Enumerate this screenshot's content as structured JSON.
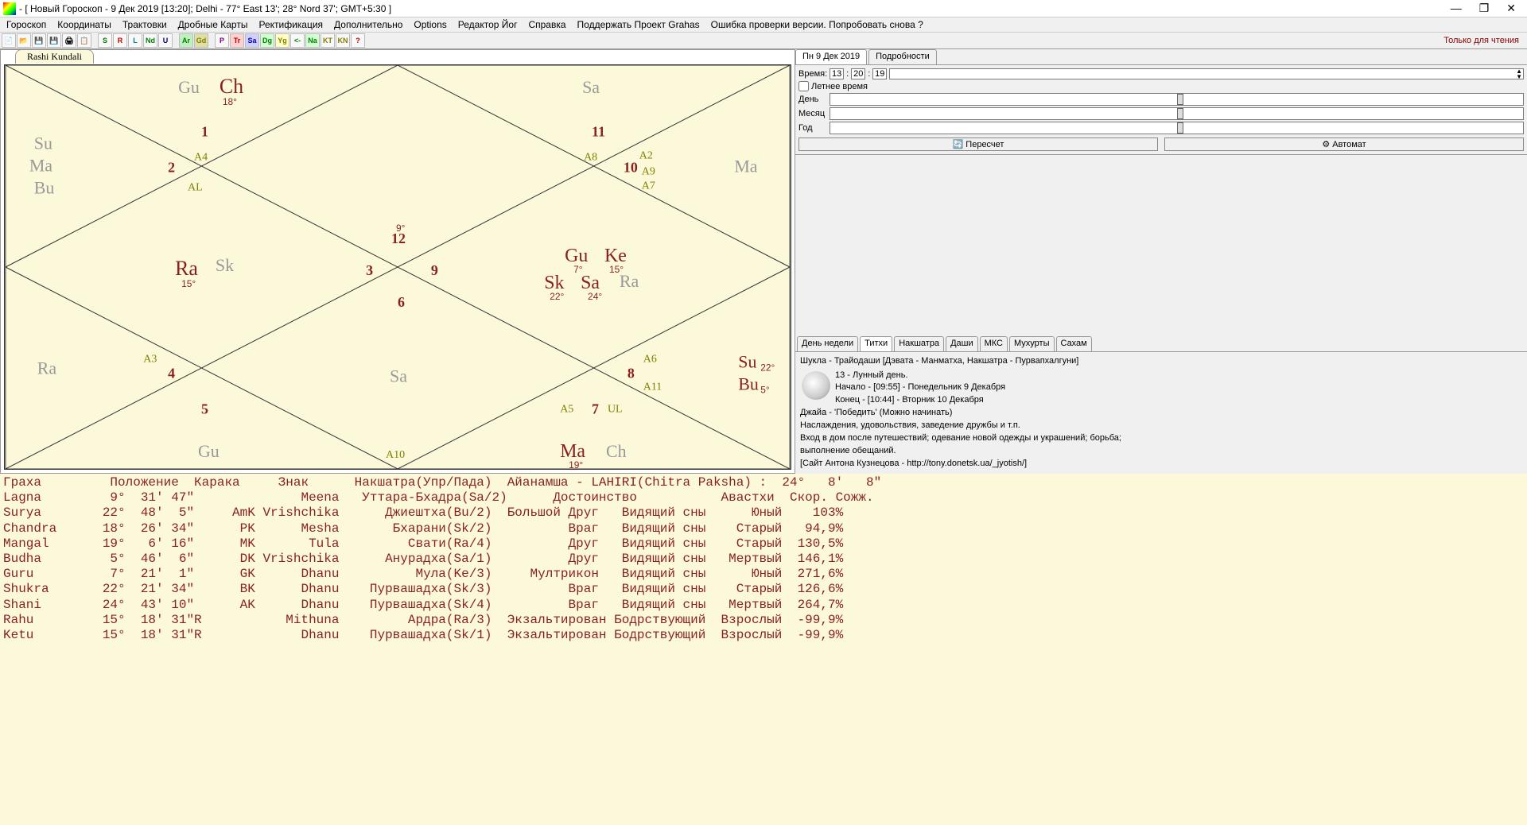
{
  "window": {
    "title": "- [ Новый Гороскоп -   9 Дек 2019 [13:20]; Delhi - 77° East 13'; 28° Nord 37'; GMT+5:30 ]"
  },
  "menu": [
    "Гороскоп",
    "Координаты",
    "Трактовки",
    "Дробные Карты",
    "Ректификация",
    "Дополнительно",
    "Options",
    "Редактор Йог",
    "Справка",
    "Поддержать Проект Grahas",
    "Ошибка проверки версии. Попробовать снова ?"
  ],
  "toolbar_readonly": "Только для чтения",
  "toolbar_btns": [
    {
      "t": "📄",
      "c": "#000"
    },
    {
      "t": "📂",
      "c": "#000"
    },
    {
      "t": "💾",
      "c": "#000"
    },
    {
      "t": "💾",
      "c": "#00a"
    },
    {
      "t": "🖨",
      "c": "#000"
    },
    {
      "t": "📋",
      "c": "#000"
    },
    {
      "t": "S",
      "c": "#008000"
    },
    {
      "t": "R",
      "c": "#c00000"
    },
    {
      "t": "L",
      "c": "#008080"
    },
    {
      "t": "Nd",
      "c": "#008000"
    },
    {
      "t": "U",
      "c": "#000080"
    },
    {
      "t": "Ar",
      "c": "#008000",
      "bg": "#c0f0c0"
    },
    {
      "t": "Gd",
      "c": "#808000",
      "bg": "#e0e0a0"
    },
    {
      "t": "P",
      "c": "#800080"
    },
    {
      "t": "Tr",
      "c": "#c00000",
      "bg": "#ffd0d0"
    },
    {
      "t": "Sa",
      "c": "#0000c0",
      "bg": "#d0d0ff"
    },
    {
      "t": "Dg",
      "c": "#008000",
      "bg": "#d0ffd0"
    },
    {
      "t": "Yg",
      "c": "#808000",
      "bg": "#ffffc0"
    },
    {
      "t": "<-",
      "c": "#008000"
    },
    {
      "t": "Na",
      "c": "#008000",
      "bg": "#d0ffd0"
    },
    {
      "t": "KT",
      "c": "#808000"
    },
    {
      "t": "KN",
      "c": "#808000"
    },
    {
      "t": "?",
      "c": "#c00000"
    }
  ],
  "chart": {
    "tab": "Rashi Kundali",
    "houses": {
      "1": "1",
      "2": "2",
      "3": "3",
      "5": "5",
      "6": "6",
      "7": "7",
      "8": "8",
      "9": "9",
      "10": "10"
    },
    "arudha": [
      "A4",
      "AL",
      "A8",
      "A2",
      "A9",
      "A7",
      "A3",
      "A6",
      "A11",
      "A5",
      "UL",
      "A10"
    ],
    "planets": {
      "Ch": {
        "t": "Ch",
        "d": "18°"
      },
      "Gu1": {
        "t": "Gu"
      },
      "Sa1": {
        "t": "Sa"
      },
      "Su1": {
        "t": "Su"
      },
      "Ma1": {
        "t": "Ma"
      },
      "Bu1": {
        "t": "Bu"
      },
      "Ma2": {
        "t": "Ma"
      },
      "Ra1": {
        "t": "Ra",
        "d": "15°"
      },
      "Sk1": {
        "t": "Sk"
      },
      "deg9": "9°",
      "n12": "12",
      "Gu2": {
        "t": "Gu",
        "d": "7°"
      },
      "Ke": {
        "t": "Ke",
        "d": "15°"
      },
      "Sk2": {
        "t": "Sk",
        "d": "22°"
      },
      "Sa2": {
        "t": "Sa",
        "d": "24°"
      },
      "Ra2": {
        "t": "Ra"
      },
      "Ra3": {
        "t": "Ra"
      },
      "n4": "4",
      "Sa3": {
        "t": "Sa"
      },
      "Su2": {
        "t": "Su",
        "d": "22°"
      },
      "Bu2": {
        "t": "Bu",
        "d": "5°"
      },
      "Gu3": {
        "t": "Gu"
      },
      "Ma3": {
        "t": "Ma",
        "d": "19°"
      },
      "Ch2": {
        "t": "Ch"
      }
    }
  },
  "right": {
    "tab1": "Пн  9 Дек 2019",
    "tab2": "Подробности",
    "time_label": "Время:",
    "t1": "13",
    "t2": "20",
    "t3": "19",
    "summer": "Летнее время",
    "day": "День",
    "month": "Месяц",
    "year": "Год",
    "btn1": "Пересчет",
    "btn2": "Автомат",
    "tabs2": [
      "День недели",
      "Титхи",
      "Накшатра",
      "Даши",
      "МКС",
      "Мухурты",
      "Сахам"
    ],
    "tabs2_active": 1,
    "info_title": "Шукла - Трайодаши [Дэвата - Манматха, Накшатра - Пурвапхалгуни]",
    "info_lines": [
      "13 - Лунный день.",
      "Начало - [09:55] - Понедельник  9 Декабря",
      "Конец - [10:44] - Вторник    10 Декабря",
      "Джайа - 'Победить'  (Можно начинать)",
      "Наслаждения, удовольствия, заведение дружбы и т.п.",
      "  Вход в дом после путешествий; одевание новой одежды и украшений; борьба;",
      "выполнение обещаний.",
      "[Сайт Антона Кузнецова - http://tony.donetsk.ua/_jyotish/]"
    ]
  },
  "table": {
    "hdr": "Граха         Положение  Карака     Знак      Накшатра(Упр/Пада)  Айанамша - LAHIRI(Chitra Paksha) :  24°   8'   8\"",
    "hdr2": "Lagna         9°  31' 47\"              Meena   Уттара-Бхадра(Sa/2)      Достоинство           Авастхи  Скор. Сожж.",
    "rows": [
      "Surya        22°  48'  5\"     AmK Vrishchika      Джиештха(Bu/2)  Большой Друг   Видящий сны      Юный    103%",
      "Chandra      18°  26' 34\"      PK      Mesha       Бхарани(Sk/2)          Враг   Видящий сны    Старый   94,9%",
      "Mangal       19°   6' 16\"      MK       Tula         Свати(Ra/4)          Друг   Видящий сны    Старый  130,5%",
      "Budha         5°  46'  6\"      DK Vrishchika      Анурадха(Sa/1)          Друг   Видящий сны   Мертвый  146,1%",
      "Guru          7°  21'  1\"      GK      Dhanu          Мула(Ke/3)     Мултрикон   Видящий сны      Юный  271,6%",
      "Shukra       22°  21' 34\"      BK      Dhanu    Пурвашадха(Sk/3)          Враг   Видящий сны    Старый  126,6%",
      "Shani        24°  43' 10\"      AK      Dhanu    Пурвашадха(Sk/4)          Враг   Видящий сны   Мертвый  264,7%",
      "Rahu         15°  18' 31\"R           Mithuna         Ардра(Ra/3)  Экзальтирован Бодрствующий  Взрослый  -99,9%",
      "Ketu         15°  18' 31\"R             Dhanu    Пурвашадха(Sk/1)  Экзальтирован Бодрствующий  Взрослый  -99,9%"
    ]
  }
}
